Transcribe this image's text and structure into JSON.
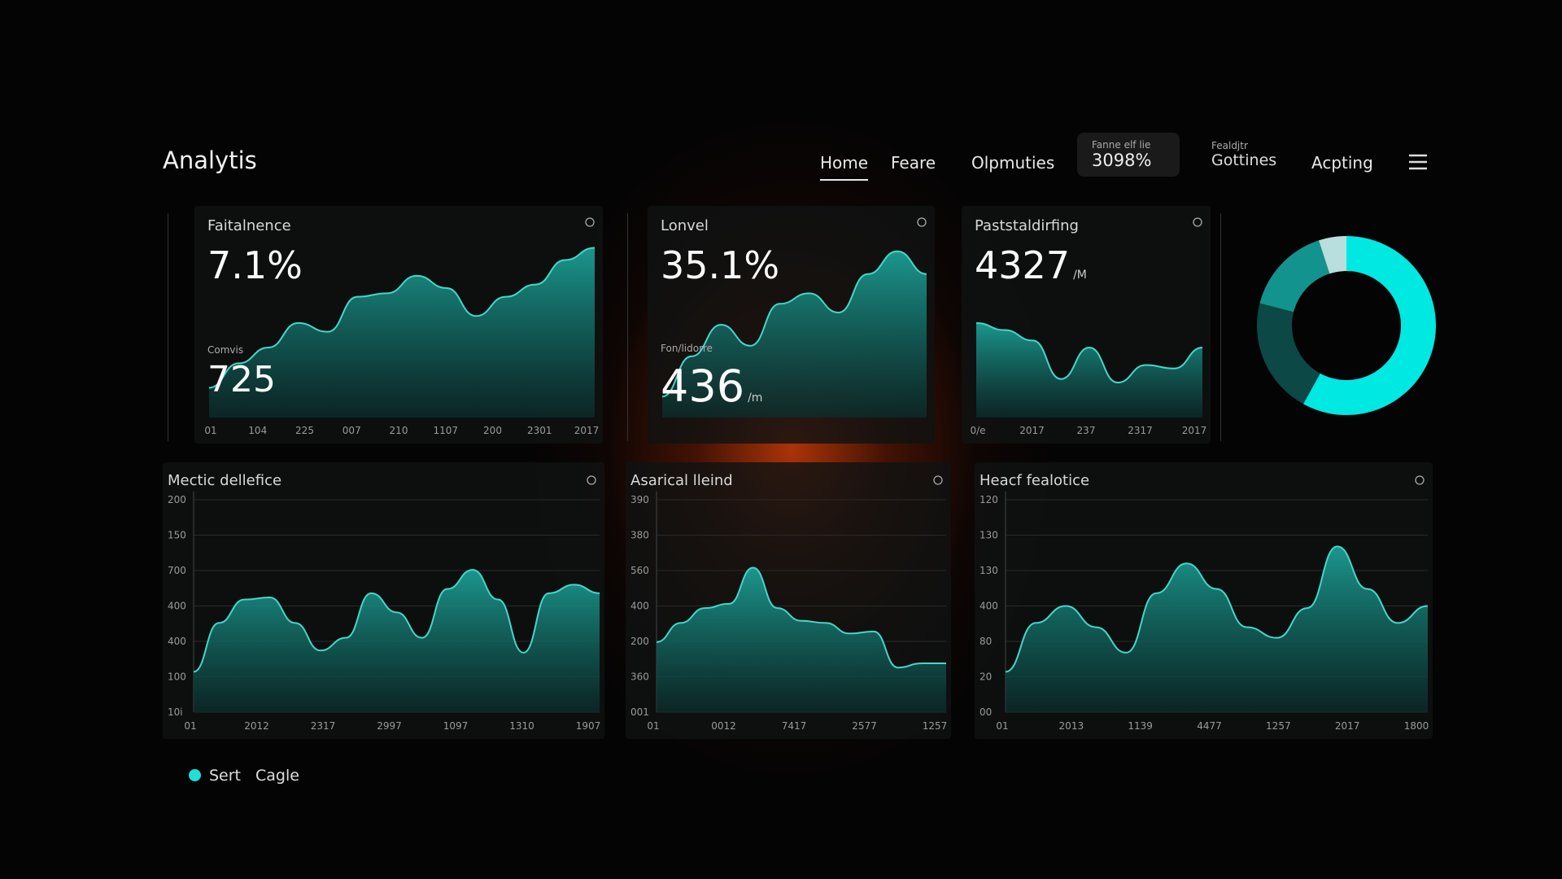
{
  "header": {
    "title": "Analytis",
    "nav": [
      "Home",
      "Feare",
      "Olpmuties"
    ],
    "stat": {
      "label": "Fanne elf lie",
      "value": "3098%"
    },
    "settings": {
      "label": "Fealdjtr",
      "value": "Gottines"
    },
    "action": "Acpting"
  },
  "top_cards": [
    {
      "title": "Faitalnence",
      "value": "7.1%",
      "sub_label": "Comvis",
      "sub_value": "725",
      "x_labels": [
        "01",
        "104",
        "225",
        "007",
        "210",
        "1107",
        "200",
        "2301",
        "2017"
      ],
      "ylim": [
        0,
        100
      ],
      "values": [
        17,
        31,
        40,
        54,
        49,
        69,
        71,
        81,
        74,
        58,
        69,
        76,
        90,
        97
      ]
    },
    {
      "title": "Lonvel",
      "value": "35.1%",
      "sub_label": "Fon/lidorre",
      "sub_value": "436",
      "sub_unit": "/m",
      "x_labels": [],
      "ylim": [
        0,
        100
      ],
      "values": [
        12,
        35,
        53,
        41,
        65,
        71,
        60,
        82,
        95,
        82
      ]
    },
    {
      "title": "Paststaldirfing",
      "value": "4327",
      "unit": "/M",
      "x_labels": [
        "0/e",
        "2017",
        "237",
        "2317",
        "2017"
      ],
      "ylim": [
        0,
        100
      ],
      "values": [
        54,
        50,
        44,
        22,
        40,
        20,
        30,
        28,
        40
      ]
    }
  ],
  "donut": {
    "values": [
      58,
      21,
      16,
      5
    ],
    "colors": [
      "#00e8e2",
      "#0b4846",
      "#13938d",
      "#b9dede"
    ]
  },
  "bottom_cards": [
    {
      "title": "Mectic dellefice",
      "y_labels": [
        "200",
        "150",
        "700",
        "400",
        "400",
        "100",
        "10i"
      ],
      "x_labels": [
        "01",
        "2012",
        "2317",
        "2997",
        "1097",
        "1310",
        "1907"
      ],
      "ylim": [
        0,
        100
      ],
      "values": [
        19,
        42,
        53,
        54,
        42,
        29,
        35,
        56,
        47,
        35,
        58,
        67,
        53,
        28,
        56,
        60,
        56
      ]
    },
    {
      "title": "Asarical lleind",
      "y_labels": [
        "390",
        "380",
        "560",
        "400",
        "200",
        "360",
        "001"
      ],
      "x_labels": [
        "01",
        "0012",
        "7417",
        "2577",
        "1257"
      ],
      "ylim": [
        0,
        100
      ],
      "values": [
        33,
        42,
        49,
        51,
        68,
        49,
        43,
        42,
        37,
        38,
        21,
        23,
        23
      ]
    },
    {
      "title": "Heacf fealotice",
      "y_labels": [
        "120",
        "130",
        "130",
        "400",
        "80",
        "20",
        "00"
      ],
      "x_labels": [
        "01",
        "2013",
        "1139",
        "4477",
        "1257",
        "2017",
        "1800"
      ],
      "ylim": [
        0,
        100
      ],
      "values": [
        19,
        42,
        50,
        40,
        28,
        56,
        70,
        58,
        40,
        35,
        49,
        78,
        58,
        42,
        50
      ]
    }
  ],
  "legend": [
    "Sert",
    "Cagle"
  ]
}
